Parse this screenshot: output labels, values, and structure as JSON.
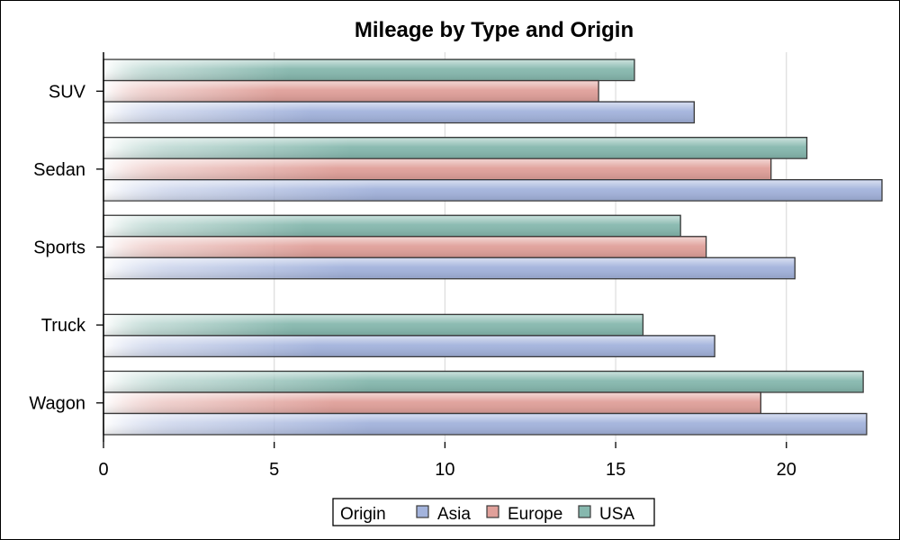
{
  "chart_data": {
    "type": "bar",
    "orientation": "horizontal",
    "title": "Mileage by Type and Origin",
    "xlabel": "",
    "ylabel": "",
    "xlim": [
      0,
      22.8
    ],
    "xticks": [
      0,
      5,
      10,
      15,
      20
    ],
    "grid": true,
    "categories": [
      "SUV",
      "Sedan",
      "Sports",
      "Truck",
      "Wagon"
    ],
    "legend": {
      "title": "Origin",
      "placement": "bottom",
      "entries": [
        "Asia",
        "Europe",
        "USA"
      ]
    },
    "series": [
      {
        "name": "Asia",
        "color": "#a3b3dc",
        "values": [
          17.3,
          22.8,
          20.25,
          17.9,
          22.35
        ]
      },
      {
        "name": "Europe",
        "color": "#e0a09a",
        "values": [
          14.5,
          19.55,
          17.65,
          null,
          19.25
        ]
      },
      {
        "name": "USA",
        "color": "#86b8ae",
        "values": [
          15.55,
          20.6,
          16.9,
          15.8,
          22.25
        ]
      }
    ]
  }
}
